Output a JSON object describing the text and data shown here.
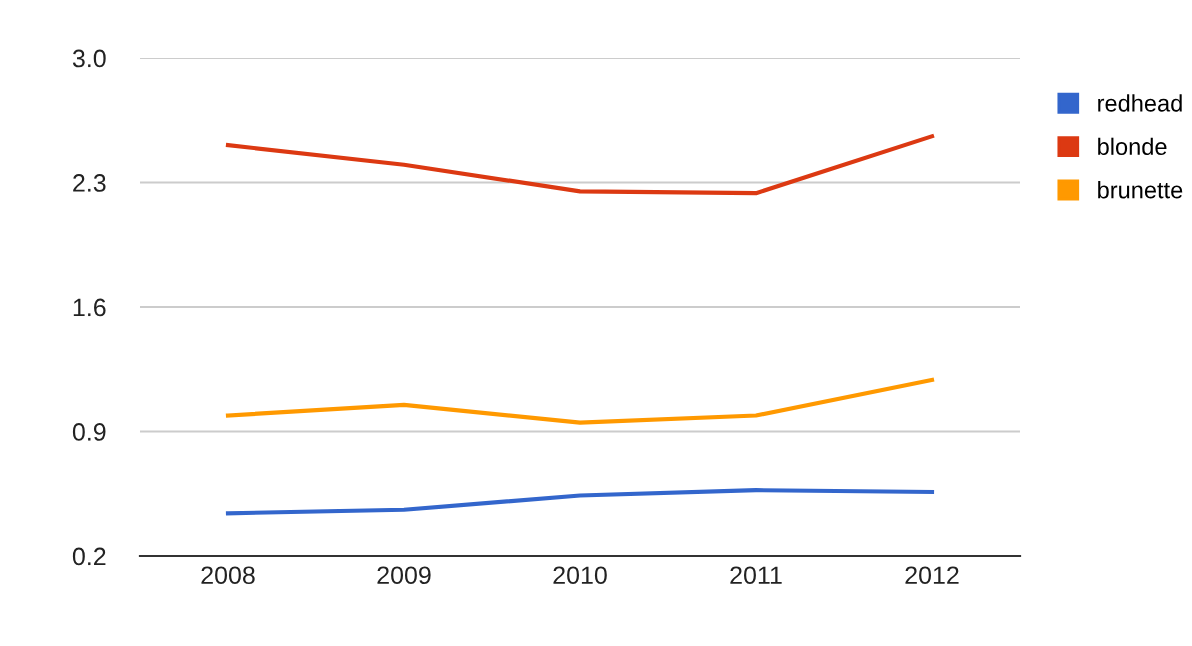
{
  "chart_data": {
    "type": "line",
    "categories": [
      "2008",
      "2009",
      "2010",
      "2011",
      "2012"
    ],
    "series": [
      {
        "name": "redhead",
        "color": "#3366cc",
        "values": [
          0.44,
          0.46,
          0.54,
          0.57,
          0.56
        ]
      },
      {
        "name": "blonde",
        "color": "#dc3912",
        "values": [
          2.51,
          2.4,
          2.25,
          2.24,
          2.56
        ]
      },
      {
        "name": "brunette",
        "color": "#ff9900",
        "values": [
          0.99,
          1.05,
          0.95,
          0.99,
          1.19
        ]
      }
    ],
    "ylim": [
      0.2,
      3.0
    ],
    "yticks": [
      {
        "value": 0.2,
        "label": "0.2"
      },
      {
        "value": 0.9,
        "label": "0.9"
      },
      {
        "value": 1.6,
        "label": "1.6"
      },
      {
        "value": 2.3,
        "label": "2.3"
      },
      {
        "value": 3.0,
        "label": "3.0"
      }
    ],
    "grid": "y",
    "legend": "right",
    "marker": "none",
    "line_style": "solid"
  }
}
